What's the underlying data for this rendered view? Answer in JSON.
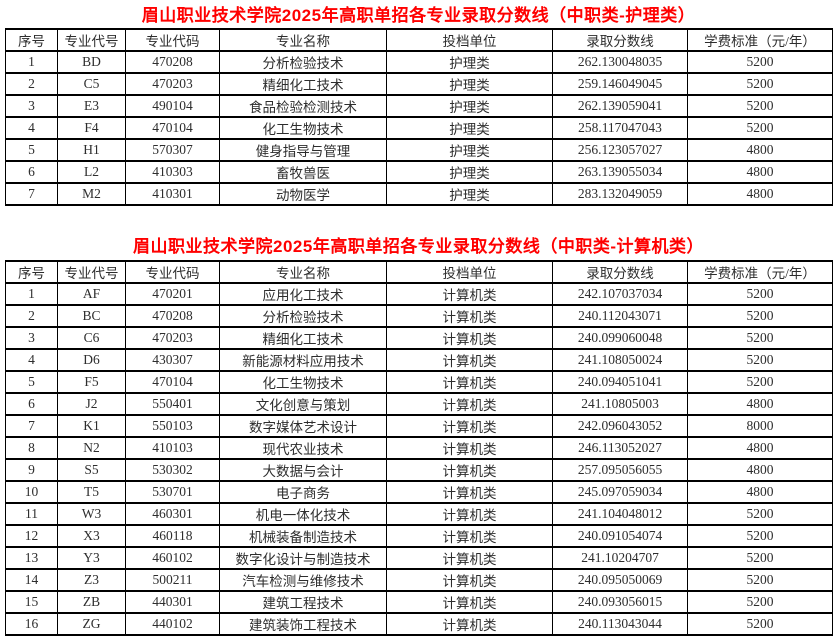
{
  "page": {
    "title_color": "#ff0000",
    "border_color": "#000000",
    "text_color": "#2d2d2d",
    "background_color": "#ffffff"
  },
  "tables": [
    {
      "title": "眉山职业技术学院2025年高职单招各专业录取分数线（中职类-护理类）",
      "headers": [
        "序号",
        "专业代号",
        "专业代码",
        "专业名称",
        "投档单位",
        "录取分数线",
        "学费标准（元/年）"
      ],
      "rows": [
        [
          "1",
          "BD",
          "470208",
          "分析检验技术",
          "护理类",
          "262.130048035",
          "5200"
        ],
        [
          "2",
          "C5",
          "470203",
          "精细化工技术",
          "护理类",
          "259.146049045",
          "5200"
        ],
        [
          "3",
          "E3",
          "490104",
          "食品检验检测技术",
          "护理类",
          "262.139059041",
          "5200"
        ],
        [
          "4",
          "F4",
          "470104",
          "化工生物技术",
          "护理类",
          "258.117047043",
          "5200"
        ],
        [
          "5",
          "H1",
          "570307",
          "健身指导与管理",
          "护理类",
          "256.123057027",
          "4800"
        ],
        [
          "6",
          "L2",
          "410303",
          "畜牧兽医",
          "护理类",
          "263.139055034",
          "4800"
        ],
        [
          "7",
          "M2",
          "410301",
          "动物医学",
          "护理类",
          "283.132049059",
          "4800"
        ]
      ]
    },
    {
      "title": "眉山职业技术学院2025年高职单招各专业录取分数线（中职类-计算机类）",
      "headers": [
        "序号",
        "专业代号",
        "专业代码",
        "专业名称",
        "投档单位",
        "录取分数线",
        "学费标准（元/年）"
      ],
      "rows": [
        [
          "1",
          "AF",
          "470201",
          "应用化工技术",
          "计算机类",
          "242.107037034",
          "5200"
        ],
        [
          "2",
          "BC",
          "470208",
          "分析检验技术",
          "计算机类",
          "240.112043071",
          "5200"
        ],
        [
          "3",
          "C6",
          "470203",
          "精细化工技术",
          "计算机类",
          "240.099060048",
          "5200"
        ],
        [
          "4",
          "D6",
          "430307",
          "新能源材料应用技术",
          "计算机类",
          "241.108050024",
          "5200"
        ],
        [
          "5",
          "F5",
          "470104",
          "化工生物技术",
          "计算机类",
          "240.094051041",
          "5200"
        ],
        [
          "6",
          "J2",
          "550401",
          "文化创意与策划",
          "计算机类",
          "241.10805003",
          "4800"
        ],
        [
          "7",
          "K1",
          "550103",
          "数字媒体艺术设计",
          "计算机类",
          "242.096043052",
          "8000"
        ],
        [
          "8",
          "N2",
          "410103",
          "现代农业技术",
          "计算机类",
          "246.113052027",
          "4800"
        ],
        [
          "9",
          "S5",
          "530302",
          "大数据与会计",
          "计算机类",
          "257.095056055",
          "4800"
        ],
        [
          "10",
          "T5",
          "530701",
          "电子商务",
          "计算机类",
          "245.097059034",
          "4800"
        ],
        [
          "11",
          "W3",
          "460301",
          "机电一体化技术",
          "计算机类",
          "241.104048012",
          "5200"
        ],
        [
          "12",
          "X3",
          "460118",
          "机械装备制造技术",
          "计算机类",
          "240.091054074",
          "5200"
        ],
        [
          "13",
          "Y3",
          "460102",
          "数字化设计与制造技术",
          "计算机类",
          "241.10204707",
          "5200"
        ],
        [
          "14",
          "Z3",
          "500211",
          "汽车检测与维修技术",
          "计算机类",
          "240.095050069",
          "5200"
        ],
        [
          "15",
          "ZB",
          "440301",
          "建筑工程技术",
          "计算机类",
          "240.093056015",
          "5200"
        ],
        [
          "16",
          "ZG",
          "440102",
          "建筑装饰工程技术",
          "计算机类",
          "240.113043044",
          "5200"
        ]
      ]
    }
  ]
}
